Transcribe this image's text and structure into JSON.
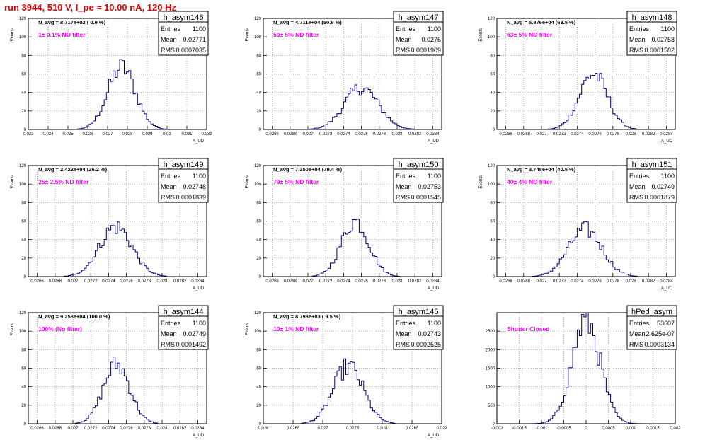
{
  "header": {
    "title": "run 3944,   510 V, I_pe ≈ 10.00 nA, 120 Hz"
  },
  "stats_labels": {
    "entries": "Entries",
    "mean": "Mean",
    "rms": "RMS"
  },
  "colors": {
    "histogram_line": "#000080",
    "annotation": "#ff00ff",
    "title_text": "#e00000",
    "frame": "#000000",
    "grid": "#888888"
  },
  "chart_data": [
    {
      "type": "histogram",
      "name": "h_asym146",
      "entries": "1100",
      "mean": "0.02771",
      "rms": "0.0007035",
      "n_avg": "N_avg = 8.717e+02 ( 0.9 %)",
      "annotation": "1± 0.1% ND filter",
      "ylabel": "Events",
      "xlabel": "A_UD",
      "xlim": [
        0.023,
        0.032
      ],
      "ylim": [
        0,
        120
      ],
      "xticks": [
        "0.023",
        "0.024",
        "0.025",
        "0.026",
        "0.027",
        "0.028",
        "0.029",
        "0.03",
        "0.031",
        "0.032"
      ],
      "yticks": [
        "0",
        "20",
        "40",
        "60",
        "80",
        "100",
        "120"
      ],
      "peak": 67,
      "center": 0.02771,
      "sigma": 0.0007035
    },
    {
      "type": "histogram",
      "name": "h_asym147",
      "entries": "1100",
      "mean": "0.0276",
      "rms": "0.0001909",
      "n_avg": "N_avg = 4.711e+04 (50.9 %)",
      "annotation": "50± 5% ND filter",
      "ylabel": "Events",
      "xlabel": "A_UD",
      "xlim": [
        0.0265,
        0.0285
      ],
      "ylim": [
        0,
        120
      ],
      "xticks": [
        "0.0266",
        "0.0268",
        "0.027",
        "0.0272",
        "0.0274",
        "0.0276",
        "0.0278",
        "0.028",
        "0.0282",
        "0.0284"
      ],
      "yticks": [
        "0",
        "20",
        "40",
        "60",
        "80",
        "100",
        "120"
      ],
      "peak": 45,
      "center": 0.0276,
      "sigma": 0.0001909
    },
    {
      "type": "histogram",
      "name": "h_asym148",
      "entries": "1100",
      "mean": "0.02758",
      "rms": "0.0001582",
      "n_avg": "N_avg = 5.876e+04 (63.5 %)",
      "annotation": "63± 5% ND filter",
      "ylabel": "Events",
      "xlabel": "A_UD",
      "xlim": [
        0.0265,
        0.0285
      ],
      "ylim": [
        0,
        120
      ],
      "xticks": [
        "0.0266",
        "0.0268",
        "0.027",
        "0.0272",
        "0.0274",
        "0.0276",
        "0.0278",
        "0.028",
        "0.0282",
        "0.0284"
      ],
      "yticks": [
        "0",
        "20",
        "40",
        "60",
        "80",
        "100",
        "120"
      ],
      "peak": 60,
      "center": 0.02758,
      "sigma": 0.0001582
    },
    {
      "type": "histogram",
      "name": "h_asym149",
      "entries": "1100",
      "mean": "0.02748",
      "rms": "0.0001839",
      "n_avg": "N_avg = 2.422e+04 (26.2 %)",
      "annotation": "25± 2.5% ND filter",
      "ylabel": "Events",
      "xlabel": "A_UD",
      "xlim": [
        0.0265,
        0.0285
      ],
      "ylim": [
        0,
        120
      ],
      "xticks": [
        "0.0266",
        "0.0268",
        "0.027",
        "0.0272",
        "0.0274",
        "0.0276",
        "0.0278",
        "0.028",
        "0.0282",
        "0.0284"
      ],
      "yticks": [
        "0",
        "20",
        "40",
        "60",
        "80",
        "100",
        "120"
      ],
      "peak": 54,
      "center": 0.02748,
      "sigma": 0.0001839
    },
    {
      "type": "histogram",
      "name": "h_asym150",
      "entries": "1100",
      "mean": "0.02753",
      "rms": "0.0001545",
      "n_avg": "N_avg = 7.350e+04 (79.4 %)",
      "annotation": "79± 5% ND filter",
      "ylabel": "Events",
      "xlabel": "A_UD",
      "xlim": [
        0.0265,
        0.0285
      ],
      "ylim": [
        0,
        120
      ],
      "xticks": [
        "0.0266",
        "0.0268",
        "0.027",
        "0.0272",
        "0.0274",
        "0.0276",
        "0.0278",
        "0.028",
        "0.0282",
        "0.0284"
      ],
      "yticks": [
        "0",
        "20",
        "40",
        "60",
        "80",
        "100",
        "120"
      ],
      "peak": 60,
      "center": 0.02753,
      "sigma": 0.0001545
    },
    {
      "type": "histogram",
      "name": "h_asym151",
      "entries": "1100",
      "mean": "0.02749",
      "rms": "0.0001879",
      "n_avg": "N_avg = 3.748e+04 (40.5 %)",
      "annotation": "40± 4% ND filter",
      "ylabel": "Events",
      "xlabel": "A_UD",
      "xlim": [
        0.0265,
        0.0285
      ],
      "ylim": [
        0,
        120
      ],
      "xticks": [
        "0.0266",
        "0.0268",
        "0.027",
        "0.0272",
        "0.0274",
        "0.0276",
        "0.0278",
        "0.028",
        "0.0282",
        "0.0284"
      ],
      "yticks": [
        "0",
        "20",
        "40",
        "60",
        "80",
        "100",
        "120"
      ],
      "peak": 51,
      "center": 0.02749,
      "sigma": 0.0001879
    },
    {
      "type": "histogram",
      "name": "h_asym144",
      "entries": "1100",
      "mean": "0.02749",
      "rms": "0.0001492",
      "n_avg": "N_avg = 9.258e+04 (100.0 %)",
      "annotation": "100% (No filter)",
      "ylabel": "Events",
      "xlabel": "A_UD",
      "xlim": [
        0.0265,
        0.0285
      ],
      "ylim": [
        0,
        120
      ],
      "xticks": [
        "0.0266",
        "0.0268",
        "0.027",
        "0.0272",
        "0.0274",
        "0.0276",
        "0.0278",
        "0.028",
        "0.0282",
        "0.0284"
      ],
      "yticks": [
        "0",
        "20",
        "40",
        "60",
        "80",
        "100",
        "120"
      ],
      "peak": 64,
      "center": 0.02749,
      "sigma": 0.0001492
    },
    {
      "type": "histogram",
      "name": "h_asym145",
      "entries": "1100",
      "mean": "0.02743",
      "rms": "0.0002525",
      "n_avg": "N_avg = 8.798e+03 ( 9.5 %)",
      "annotation": "10± 1% ND filter",
      "ylabel": "Events",
      "xlabel": "A_UD",
      "xlim": [
        0.026,
        0.029
      ],
      "ylim": [
        0,
        120
      ],
      "xticks": [
        "0.026",
        "0.0265",
        "0.027",
        "0.0275",
        "0.028",
        "0.0285",
        "0.029"
      ],
      "yticks": [
        "0",
        "20",
        "40",
        "60",
        "80",
        "100",
        "120"
      ],
      "peak": 62,
      "center": 0.02743,
      "sigma": 0.0002525
    },
    {
      "type": "histogram",
      "name": "hPed_asym",
      "entries": "53607",
      "mean": "2.625e-07",
      "rms": "0.0003134",
      "n_avg": "",
      "annotation": "Shutter Closed",
      "ylabel": "",
      "xlabel": "",
      "xlim": [
        -0.002,
        0.002
      ],
      "ylim": [
        0,
        3000
      ],
      "xticks": [
        "-0.002",
        "-0.0015",
        "-0.001",
        "-0.0005",
        "0",
        "0.0005",
        "0.001",
        "0.0015",
        "0.002"
      ],
      "yticks": [
        "0",
        "500",
        "1000",
        "1500",
        "2000",
        "2500"
      ],
      "peak": 2800,
      "center": 0.0,
      "sigma": 0.0003134
    }
  ]
}
